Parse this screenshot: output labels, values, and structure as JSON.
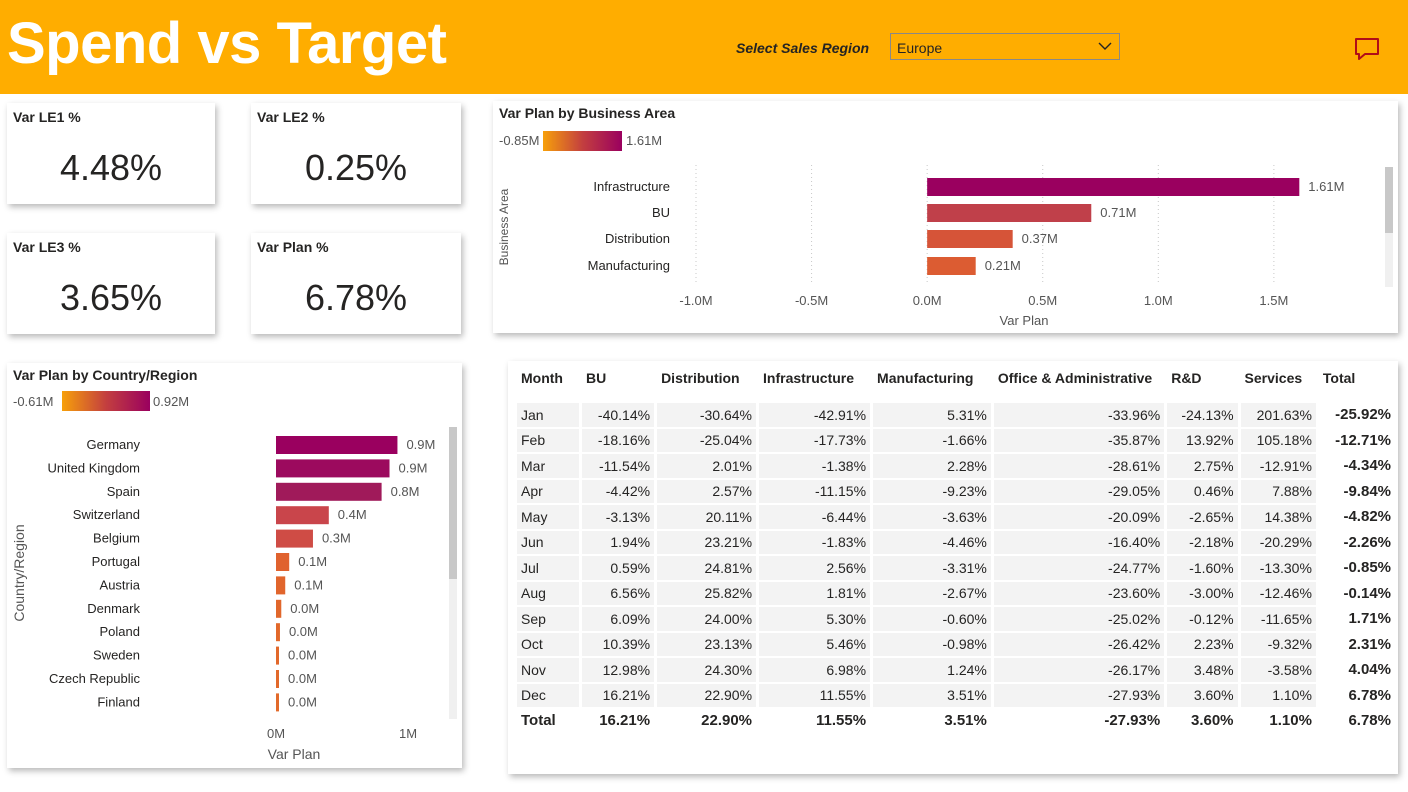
{
  "header": {
    "title": "Spend vs Target",
    "region_label": "Select Sales Region",
    "region_value": "Europe",
    "bg_color": "#ffad00"
  },
  "kpis": {
    "le1": {
      "label": "Var LE1 %",
      "value": "4.48%"
    },
    "le2": {
      "label": "Var LE2 %",
      "value": "0.25%"
    },
    "le3": {
      "label": "Var LE3 %",
      "value": "3.65%"
    },
    "plan": {
      "label": "Var Plan %",
      "value": "6.78%"
    }
  },
  "business_chart": {
    "title": "Var Plan by Business Area",
    "legend_min": "-0.85M",
    "legend_max": "1.61M"
  },
  "country_chart": {
    "title": "Var Plan by Country/Region",
    "legend_min": "-0.61M",
    "legend_max": "0.92M"
  },
  "chart_data": [
    {
      "type": "bar",
      "orientation": "horizontal",
      "title": "Var Plan by Business Area",
      "xlabel": "Var Plan",
      "ylabel": "Business Area",
      "categories": [
        "Infrastructure",
        "BU",
        "Distribution",
        "Manufacturing"
      ],
      "values": [
        1.61,
        0.71,
        0.37,
        0.21
      ],
      "data_labels": [
        "1.61M",
        "0.71M",
        "0.37M",
        "0.21M"
      ],
      "colors": [
        "#9a005f",
        "#c0404a",
        "#d65438",
        "#dc5c32"
      ],
      "xlim": [
        -1.0,
        1.6
      ],
      "xticks": [
        -1.0,
        -0.5,
        0.0,
        0.5,
        1.0,
        1.5
      ],
      "xtick_labels": [
        "-1.0M",
        "-0.5M",
        "0.0M",
        "0.5M",
        "1.0M",
        "1.5M"
      ]
    },
    {
      "type": "bar",
      "orientation": "horizontal",
      "title": "Var Plan by Country/Region",
      "xlabel": "Var Plan",
      "ylabel": "Country/Region",
      "categories": [
        "Germany",
        "United Kingdom",
        "Spain",
        "Switzerland",
        "Belgium",
        "Portugal",
        "Austria",
        "Denmark",
        "Poland",
        "Sweden",
        "Czech Republic",
        "Finland"
      ],
      "values": [
        0.92,
        0.86,
        0.8,
        0.4,
        0.28,
        0.1,
        0.07,
        0.04,
        0.03,
        0.02,
        0.02,
        0.01
      ],
      "data_labels": [
        "0.9M",
        "0.9M",
        "0.8M",
        "0.4M",
        "0.3M",
        "0.1M",
        "0.1M",
        "0.0M",
        "0.0M",
        "0.0M",
        "0.0M",
        "0.0M"
      ],
      "colors": [
        "#9a005f",
        "#9c0a5e",
        "#a01a5a",
        "#c9454b",
        "#cf4c45",
        "#e0622e",
        "#e1652c",
        "#e1672b",
        "#e2682a",
        "#e2682a",
        "#e2692a",
        "#e26a2a"
      ],
      "xlim": [
        0,
        1.0
      ],
      "xticks": [
        0,
        1.0
      ],
      "xtick_labels": [
        "0M",
        "1M"
      ]
    }
  ],
  "matrix": {
    "headers": [
      "Month",
      "BU",
      "Distribution",
      "Infrastructure",
      "Manufacturing",
      "Office & Administrative",
      "R&D",
      "Services",
      "Total"
    ],
    "rows": [
      [
        "Jan",
        "-40.14%",
        "-30.64%",
        "-42.91%",
        "5.31%",
        "-33.96%",
        "-24.13%",
        "201.63%",
        "-25.92%"
      ],
      [
        "Feb",
        "-18.16%",
        "-25.04%",
        "-17.73%",
        "-1.66%",
        "-35.87%",
        "13.92%",
        "105.18%",
        "-12.71%"
      ],
      [
        "Mar",
        "-11.54%",
        "2.01%",
        "-1.38%",
        "2.28%",
        "-28.61%",
        "2.75%",
        "-12.91%",
        "-4.34%"
      ],
      [
        "Apr",
        "-4.42%",
        "2.57%",
        "-11.15%",
        "-9.23%",
        "-29.05%",
        "0.46%",
        "7.88%",
        "-9.84%"
      ],
      [
        "May",
        "-3.13%",
        "20.11%",
        "-6.44%",
        "-3.63%",
        "-20.09%",
        "-2.65%",
        "14.38%",
        "-4.82%"
      ],
      [
        "Jun",
        "1.94%",
        "23.21%",
        "-1.83%",
        "-4.46%",
        "-16.40%",
        "-2.18%",
        "-20.29%",
        "-2.26%"
      ],
      [
        "Jul",
        "0.59%",
        "24.81%",
        "2.56%",
        "-3.31%",
        "-24.77%",
        "-1.60%",
        "-13.30%",
        "-0.85%"
      ],
      [
        "Aug",
        "6.56%",
        "25.82%",
        "1.81%",
        "-2.67%",
        "-23.60%",
        "-3.00%",
        "-12.46%",
        "-0.14%"
      ],
      [
        "Sep",
        "6.09%",
        "24.00%",
        "5.30%",
        "-0.60%",
        "-25.02%",
        "-0.12%",
        "-11.65%",
        "1.71%"
      ],
      [
        "Oct",
        "10.39%",
        "23.13%",
        "5.46%",
        "-0.98%",
        "-26.42%",
        "2.23%",
        "-9.32%",
        "2.31%"
      ],
      [
        "Nov",
        "12.98%",
        "24.30%",
        "6.98%",
        "1.24%",
        "-26.17%",
        "3.48%",
        "-3.58%",
        "4.04%"
      ],
      [
        "Dec",
        "16.21%",
        "22.90%",
        "11.55%",
        "3.51%",
        "-27.93%",
        "3.60%",
        "1.10%",
        "6.78%"
      ]
    ],
    "total_row": [
      "Total",
      "16.21%",
      "22.90%",
      "11.55%",
      "3.51%",
      "-27.93%",
      "3.60%",
      "1.10%",
      "6.78%"
    ]
  }
}
